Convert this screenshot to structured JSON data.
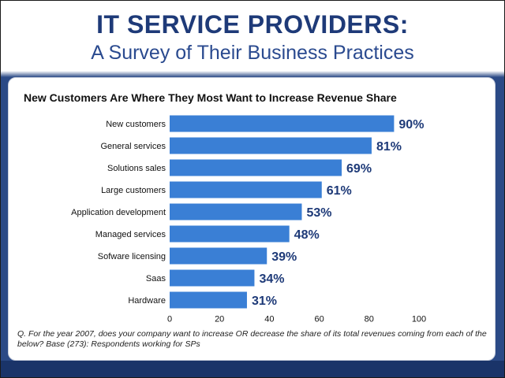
{
  "header": {
    "title": "IT SERVICE PROVIDERS:",
    "subtitle": "A Survey of Their Business Practices"
  },
  "note": "Q. For the year 2007, does your company want to increase OR decrease the share of its total revenues coming from each of the below? Base (273):  Respondents working for SPs",
  "colors": {
    "bar": "#3a7fd5",
    "value_label": "#1e3a78",
    "band": "#2b4a86",
    "footer": "#1a3469"
  },
  "chart_data": {
    "type": "bar",
    "orientation": "horizontal",
    "title": "New Customers Are Where They Most Want to Increase Revenue Share",
    "xlabel": "",
    "ylabel": "",
    "categories": [
      "New customers",
      "General services",
      "Solutions sales",
      "Large customers",
      "Application development",
      "Managed services",
      "Sofware licensing",
      "Saas",
      "Hardware"
    ],
    "values": [
      90,
      81,
      69,
      61,
      53,
      48,
      39,
      34,
      31
    ],
    "value_labels": [
      "90%",
      "81%",
      "69%",
      "61%",
      "53%",
      "48%",
      "39%",
      "34%",
      "31%"
    ],
    "xlim": [
      0,
      100
    ],
    "xticks": [
      "0",
      "20",
      "40",
      "60",
      "80",
      "100"
    ],
    "grid": false,
    "legend": "none"
  }
}
